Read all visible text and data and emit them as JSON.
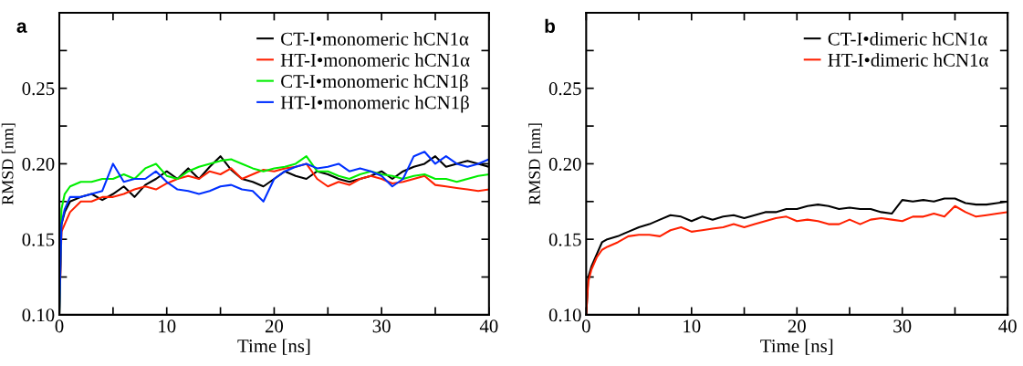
{
  "chart_data": [
    {
      "type": "line",
      "xlabel": "Time [ns]",
      "ylabel": "RMSD [nm]",
      "annotations": [
        "a"
      ],
      "legend": "top right",
      "grid": false,
      "line_style": "solid",
      "marker": "none",
      "xlim": [
        0,
        40
      ],
      "ylim": [
        0.1,
        0.3
      ],
      "xticks": [
        0,
        {
          "value": 5,
          "label": null
        },
        10,
        {
          "value": 15,
          "label": null
        },
        20,
        {
          "value": 25,
          "label": null
        },
        30,
        {
          "value": 35,
          "label": null
        },
        40
      ],
      "yticks": [
        {
          "value": 0.1,
          "label": "0.10"
        },
        {
          "value": 0.125,
          "label": null
        },
        {
          "value": 0.15,
          "label": "0.15"
        },
        {
          "value": 0.175,
          "label": null
        },
        {
          "value": 0.2,
          "label": "0.20"
        },
        {
          "value": 0.225,
          "label": null
        },
        {
          "value": 0.25,
          "label": "0.25"
        },
        {
          "value": 0.275,
          "label": null
        },
        {
          "value": 0.3,
          "label": null
        }
      ],
      "x": [
        0,
        0.2,
        0.5,
        1,
        2,
        3,
        4,
        5,
        6,
        7,
        8,
        9,
        10,
        11,
        12,
        13,
        14,
        15,
        16,
        17,
        18,
        19,
        20,
        21,
        22,
        23,
        24,
        25,
        26,
        27,
        28,
        29,
        30,
        31,
        32,
        33,
        34,
        35,
        36,
        37,
        38,
        39,
        40
      ],
      "series": [
        {
          "name": "CT-I•monomeric hCN1α",
          "color": "#000000",
          "values": [
            0.1,
            0.16,
            0.168,
            0.175,
            0.178,
            0.18,
            0.176,
            0.18,
            0.185,
            0.178,
            0.186,
            0.19,
            0.195,
            0.19,
            0.197,
            0.19,
            0.198,
            0.205,
            0.196,
            0.19,
            0.188,
            0.185,
            0.19,
            0.195,
            0.192,
            0.19,
            0.195,
            0.193,
            0.19,
            0.188,
            0.19,
            0.192,
            0.195,
            0.19,
            0.195,
            0.198,
            0.2,
            0.205,
            0.198,
            0.2,
            0.202,
            0.2,
            0.198
          ]
        },
        {
          "name": "HT-I•monomeric hCN1α",
          "color": "#ff2000",
          "values": [
            0.1,
            0.155,
            0.16,
            0.168,
            0.175,
            0.175,
            0.178,
            0.178,
            0.18,
            0.183,
            0.185,
            0.183,
            0.187,
            0.19,
            0.192,
            0.19,
            0.195,
            0.193,
            0.197,
            0.19,
            0.193,
            0.196,
            0.195,
            0.197,
            0.198,
            0.2,
            0.19,
            0.185,
            0.188,
            0.186,
            0.19,
            0.192,
            0.19,
            0.187,
            0.188,
            0.19,
            0.192,
            0.186,
            0.185,
            0.184,
            0.183,
            0.182,
            0.183
          ]
        },
        {
          "name": "CT-I•monomeric hCN1β",
          "color": "#00ee00",
          "values": [
            0.1,
            0.17,
            0.18,
            0.185,
            0.188,
            0.188,
            0.19,
            0.19,
            0.193,
            0.19,
            0.197,
            0.2,
            0.192,
            0.19,
            0.195,
            0.198,
            0.2,
            0.202,
            0.203,
            0.2,
            0.197,
            0.195,
            0.197,
            0.198,
            0.2,
            0.205,
            0.195,
            0.195,
            0.192,
            0.19,
            0.193,
            0.195,
            0.193,
            0.192,
            0.19,
            0.192,
            0.193,
            0.19,
            0.19,
            0.188,
            0.19,
            0.192,
            0.193
          ]
        },
        {
          "name": "HT-I•monomeric hCN1β",
          "color": "#0030ff",
          "values": [
            0.1,
            0.16,
            0.17,
            0.178,
            0.178,
            0.18,
            0.182,
            0.2,
            0.188,
            0.19,
            0.19,
            0.195,
            0.188,
            0.183,
            0.182,
            0.18,
            0.182,
            0.185,
            0.186,
            0.183,
            0.182,
            0.175,
            0.19,
            0.195,
            0.198,
            0.2,
            0.197,
            0.198,
            0.2,
            0.195,
            0.197,
            0.195,
            0.192,
            0.185,
            0.19,
            0.205,
            0.208,
            0.2,
            0.205,
            0.2,
            0.198,
            0.2,
            0.203
          ]
        }
      ]
    },
    {
      "type": "line",
      "xlabel": "Time [ns]",
      "ylabel": "RMSD [nm]",
      "annotations": [
        "b"
      ],
      "legend": "top right",
      "grid": false,
      "line_style": "solid",
      "marker": "none",
      "xlim": [
        0,
        40
      ],
      "ylim": [
        0.1,
        0.3
      ],
      "xticks": [
        0,
        {
          "value": 5,
          "label": null
        },
        10,
        {
          "value": 15,
          "label": null
        },
        20,
        {
          "value": 25,
          "label": null
        },
        30,
        {
          "value": 35,
          "label": null
        },
        40
      ],
      "yticks": [
        {
          "value": 0.1,
          "label": "0.10"
        },
        {
          "value": 0.125,
          "label": null
        },
        {
          "value": 0.15,
          "label": "0.15"
        },
        {
          "value": 0.175,
          "label": null
        },
        {
          "value": 0.2,
          "label": "0.20"
        },
        {
          "value": 0.225,
          "label": null
        },
        {
          "value": 0.25,
          "label": "0.25"
        },
        {
          "value": 0.275,
          "label": null
        },
        {
          "value": 0.3,
          "label": null
        }
      ],
      "x": [
        0,
        0.2,
        0.5,
        1,
        1.5,
        2,
        3,
        4,
        5,
        6,
        7,
        8,
        9,
        10,
        11,
        12,
        13,
        14,
        15,
        16,
        17,
        18,
        19,
        20,
        21,
        22,
        23,
        24,
        25,
        26,
        27,
        28,
        29,
        30,
        31,
        32,
        33,
        34,
        35,
        36,
        37,
        38,
        39,
        40
      ],
      "series": [
        {
          "name": "CT-I•dimeric hCN1α",
          "color": "#000000",
          "values": [
            0.1,
            0.125,
            0.132,
            0.14,
            0.148,
            0.15,
            0.152,
            0.155,
            0.158,
            0.16,
            0.163,
            0.166,
            0.165,
            0.162,
            0.165,
            0.163,
            0.165,
            0.166,
            0.164,
            0.166,
            0.168,
            0.168,
            0.17,
            0.17,
            0.172,
            0.173,
            0.172,
            0.17,
            0.171,
            0.17,
            0.17,
            0.168,
            0.167,
            0.176,
            0.175,
            0.176,
            0.175,
            0.177,
            0.177,
            0.174,
            0.173,
            0.173,
            0.174,
            0.175
          ]
        },
        {
          "name": "HT-I•dimeric hCN1α",
          "color": "#ff2000",
          "values": [
            0.1,
            0.122,
            0.13,
            0.138,
            0.143,
            0.145,
            0.148,
            0.152,
            0.153,
            0.153,
            0.152,
            0.156,
            0.158,
            0.155,
            0.156,
            0.157,
            0.158,
            0.16,
            0.158,
            0.16,
            0.162,
            0.164,
            0.165,
            0.162,
            0.163,
            0.162,
            0.16,
            0.16,
            0.163,
            0.16,
            0.163,
            0.164,
            0.163,
            0.162,
            0.165,
            0.165,
            0.167,
            0.165,
            0.172,
            0.168,
            0.165,
            0.166,
            0.167,
            0.168
          ]
        }
      ]
    }
  ]
}
